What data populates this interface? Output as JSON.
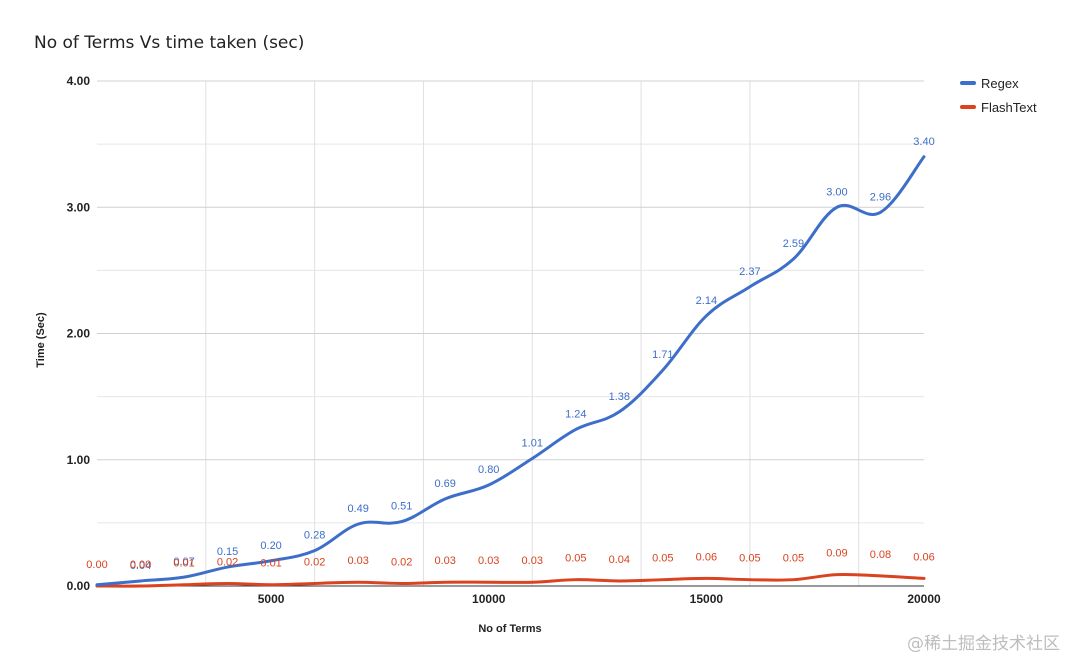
{
  "chart_data": {
    "type": "line",
    "title": "No of Terms Vs time taken (sec)",
    "xlabel": "No of Terms",
    "ylabel": "Time (Sec)",
    "xlim": [
      1000,
      20000
    ],
    "ylim": [
      0,
      4
    ],
    "xticks": [
      5000,
      10000,
      15000,
      20000
    ],
    "xtick_labels": [
      "5000",
      "10000",
      "15000",
      "20000"
    ],
    "yticks": [
      0,
      1,
      2,
      3,
      4
    ],
    "ytick_labels": [
      "0.00",
      "1.00",
      "2.00",
      "3.00",
      "4.00"
    ],
    "grid": true,
    "legend_position": "top-right",
    "x": [
      1000,
      2000,
      3000,
      4000,
      5000,
      6000,
      7000,
      8000,
      9000,
      10000,
      11000,
      12000,
      13000,
      14000,
      15000,
      16000,
      17000,
      18000,
      19000,
      20000
    ],
    "series": [
      {
        "name": "Regex",
        "color": "#3d6ec9",
        "values": [
          0.01,
          0.04,
          0.07,
          0.15,
          0.2,
          0.28,
          0.49,
          0.51,
          0.69,
          0.8,
          1.01,
          1.24,
          1.38,
          1.71,
          2.14,
          2.37,
          2.59,
          3.0,
          2.96,
          3.4
        ],
        "labels": [
          "",
          "0.04",
          "0.07",
          "0.15",
          "0.20",
          "0.28",
          "0.49",
          "0.51",
          "0.69",
          "0.80",
          "1.01",
          "1.24",
          "1.38",
          "1.71",
          "2.14",
          "2.37",
          "2.59",
          "3.00",
          "2.96",
          "3.40"
        ]
      },
      {
        "name": "FlashText",
        "color": "#d9431f",
        "values": [
          0.0,
          0.0,
          0.01,
          0.02,
          0.01,
          0.02,
          0.03,
          0.02,
          0.03,
          0.03,
          0.03,
          0.05,
          0.04,
          0.05,
          0.06,
          0.05,
          0.05,
          0.09,
          0.08,
          0.06
        ],
        "labels": [
          "0.00",
          "0.00",
          "0.01",
          "0.02",
          "0.01",
          "0.02",
          "0.03",
          "0.02",
          "0.03",
          "0.03",
          "0.03",
          "0.05",
          "0.04",
          "0.05",
          "0.06",
          "0.05",
          "0.05",
          "0.09",
          "0.08",
          "0.06"
        ]
      }
    ]
  },
  "watermark": "@稀土掘金技术社区"
}
